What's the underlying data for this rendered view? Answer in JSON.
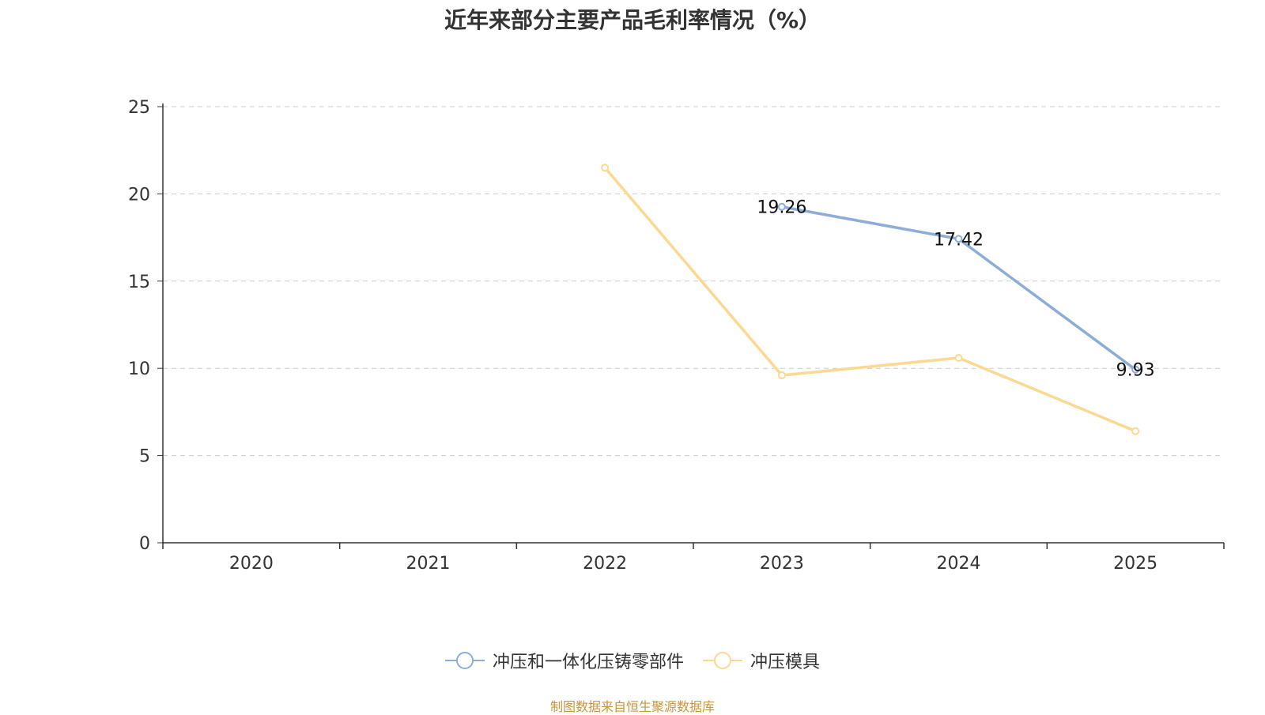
{
  "colors": {
    "series_1": "#8eacd8",
    "series_2": "#fdd892",
    "grid": "#cccccc",
    "axis": "#333333",
    "source": "#c9963a"
  },
  "chart_data": {
    "type": "line",
    "title": "近年来部分主要产品毛利率情况（%）",
    "categories": [
      "2020",
      "2021",
      "2022",
      "2023",
      "2024",
      "2025"
    ],
    "ylim": [
      0,
      25
    ],
    "yticks": [
      0,
      5,
      10,
      15,
      20,
      25
    ],
    "grid": true,
    "legend_position": "bottom",
    "series": [
      {
        "name": "冲压和一体化压铸零部件",
        "values": [
          null,
          null,
          null,
          19.26,
          17.42,
          9.93
        ],
        "show_labels": true
      },
      {
        "name": "冲压模具",
        "values": [
          null,
          null,
          21.5,
          9.6,
          10.6,
          6.4
        ],
        "show_labels": false
      }
    ]
  },
  "footer": {
    "source": "制图数据来自恒生聚源数据库"
  }
}
